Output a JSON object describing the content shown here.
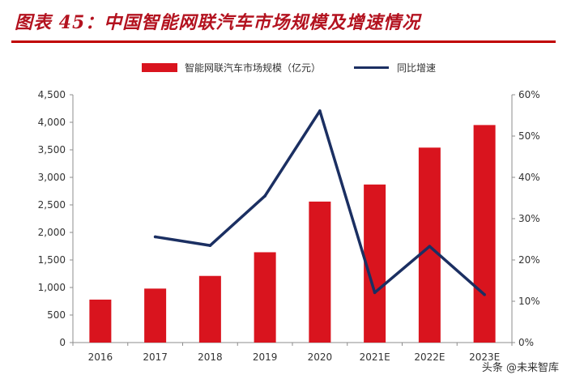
{
  "title": "图表 45：中国智能网联汽车市场规模及增速情况",
  "watermark": "头条 @未来智库",
  "chart_data": {
    "type": "bar",
    "categories": [
      "2016",
      "2017",
      "2018",
      "2019",
      "2020",
      "2021E",
      "2022E",
      "2023E"
    ],
    "series": [
      {
        "name": "智能网联汽车市场规模（亿元）",
        "type": "bar",
        "axis": "left",
        "color": "#d9141e",
        "values": [
          780,
          980,
          1210,
          1640,
          2560,
          2870,
          3540,
          3950
        ]
      },
      {
        "name": "同比增速",
        "type": "line",
        "axis": "right",
        "color": "#1b2f62",
        "values": [
          null,
          25.6,
          23.5,
          35.5,
          56.1,
          12.1,
          23.3,
          11.6
        ]
      }
    ],
    "ylim_left": [
      0,
      4500
    ],
    "yticks_left": [
      "0",
      "500",
      "1,000",
      "1,500",
      "2,000",
      "2,500",
      "3,000",
      "3,500",
      "4,000",
      "4,500"
    ],
    "ylim_right": [
      0,
      60
    ],
    "yticks_right": [
      "0%",
      "10%",
      "20%",
      "30%",
      "40%",
      "50%",
      "60%"
    ],
    "legend_position": "top",
    "grid": false
  }
}
